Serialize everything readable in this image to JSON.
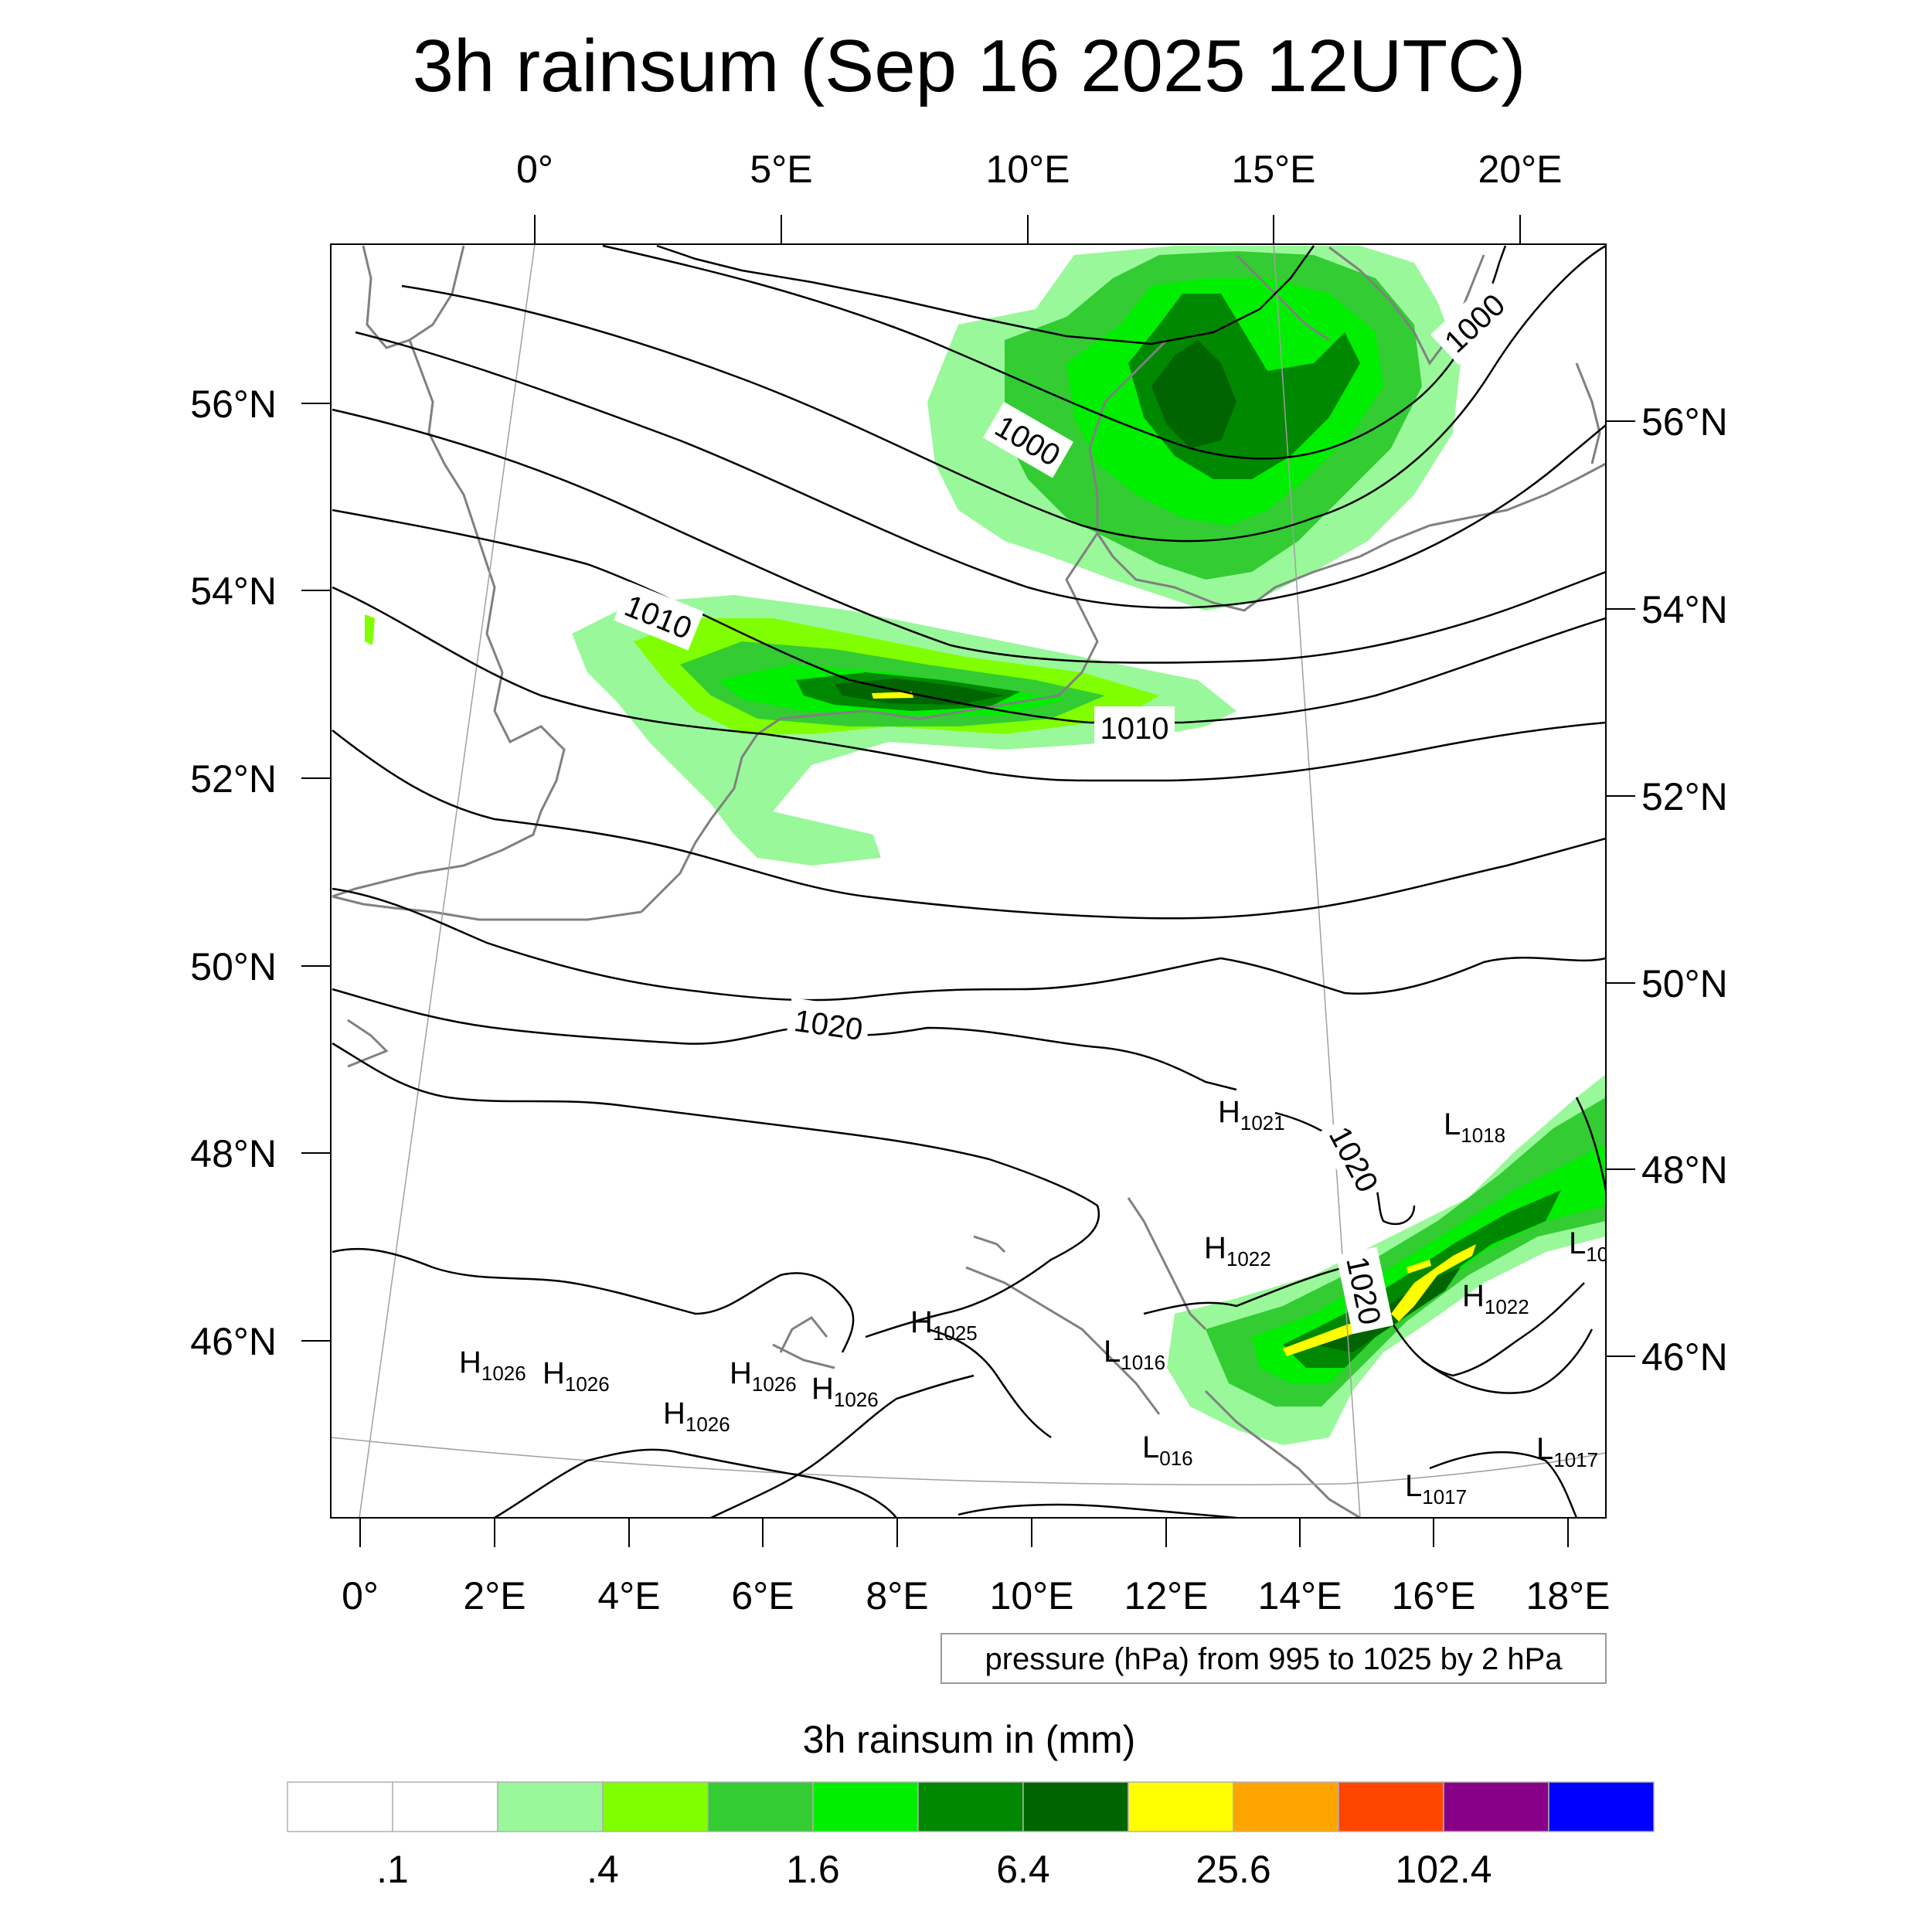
{
  "title": "3h rainsum (Sep 16 2025 12UTC)",
  "colors": {
    "contour": "#000000",
    "coast": "#808080",
    "gridline": "#a0a0a0",
    "frame": "#000000"
  },
  "top_lon_labels": [
    "0°",
    "5°E",
    "10°E",
    "15°E",
    "20°E"
  ],
  "bottom_lon_labels": [
    "0°",
    "2°E",
    "4°E",
    "6°E",
    "8°E",
    "10°E",
    "12°E",
    "14°E",
    "16°E",
    "18°E"
  ],
  "left_lat_labels": [
    "56°N",
    "54°N",
    "52°N",
    "50°N",
    "48°N",
    "46°N"
  ],
  "right_lat_labels": [
    "56°N",
    "54°N",
    "52°N",
    "50°N",
    "48°N",
    "46°N"
  ],
  "contour_labels": [
    {
      "text": "1000",
      "rot": 30
    },
    {
      "text": "1000",
      "rot": -43
    },
    {
      "text": "1010",
      "rot": 22
    },
    {
      "text": "1010",
      "rot": 0
    },
    {
      "text": "1020",
      "rot": 8
    },
    {
      "text": "1020",
      "rot": 62
    },
    {
      "text": "1020",
      "rot": 78
    }
  ],
  "pressure_centers": [
    {
      "letter": "H",
      "value": "1021"
    },
    {
      "letter": "L",
      "value": "1018"
    },
    {
      "letter": "H",
      "value": "1022"
    },
    {
      "letter": "L",
      "value": "10"
    },
    {
      "letter": "H",
      "value": "1022"
    },
    {
      "letter": "H",
      "value": "1025"
    },
    {
      "letter": "L",
      "value": "1016"
    },
    {
      "letter": "H",
      "value": "1026"
    },
    {
      "letter": "H",
      "value": "1026"
    },
    {
      "letter": "H",
      "value": "1026"
    },
    {
      "letter": "H",
      "value": "1026"
    },
    {
      "letter": "H",
      "value": "1026"
    },
    {
      "letter": "L",
      "value": "016"
    },
    {
      "letter": "L",
      "value": "1017"
    },
    {
      "letter": "L",
      "value": "1017"
    }
  ],
  "contour_note": "pressure (hPa) from 995 to 1025 by 2 hPa",
  "colorbar": {
    "title": "3h rainsum in (mm)",
    "colors": [
      "#ffffff",
      "#ffffff",
      "#99f899",
      "#80ff00",
      "#33cc33",
      "#00ee00",
      "#008800",
      "#006400",
      "#ffff00",
      "#ffa500",
      "#ff4500",
      "#880088",
      "#0000ff"
    ],
    "labels": [
      ".1",
      ".4",
      "1.6",
      "6.4",
      "25.6",
      "102.4"
    ]
  }
}
